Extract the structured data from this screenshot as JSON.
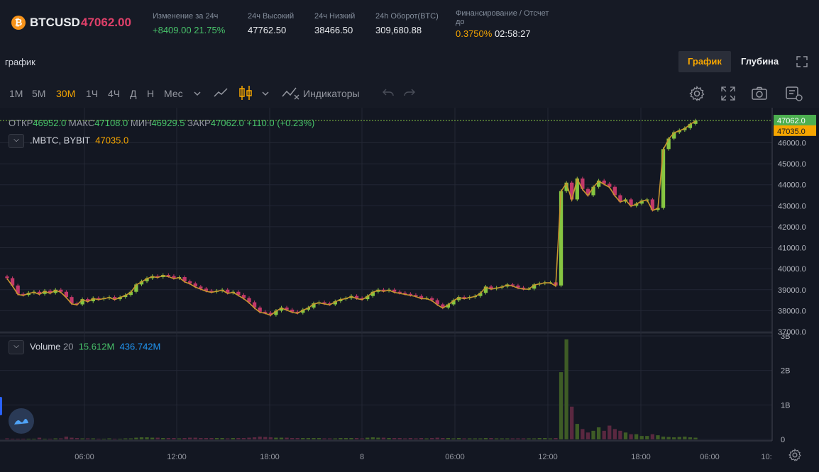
{
  "ticker": {
    "symbol": "BTCUSD",
    "price": "47062.00",
    "change": {
      "label": "Изменение за 24ч",
      "value": "+8409.00 21.75%"
    },
    "high": {
      "label": "24ч Высокий",
      "value": "47762.50"
    },
    "low": {
      "label": "24ч Низкий",
      "value": "38466.50"
    },
    "turnover": {
      "label": "24h Оборот(BTC)",
      "value": "309,680.88"
    },
    "funding": {
      "label_line1": "Финансирование / Отсчет",
      "label_line2": "до",
      "rate": "0.3750%",
      "countdown": "02:58:27"
    }
  },
  "chart_header": {
    "title": "график",
    "tabs": [
      "График",
      "Глубина"
    ],
    "active_tab": "График"
  },
  "toolbar": {
    "timeframes": [
      "1M",
      "5M",
      "30M",
      "1Ч",
      "4Ч",
      "Д",
      "Н",
      "Мес"
    ],
    "active_timeframe": "30M",
    "indicators_label": "Индикаторы"
  },
  "legend": {
    "open_label": "ОТКР",
    "open": "46952.0",
    "high_label": "МАКС",
    "high": "47108.0",
    "low_label": "МИН",
    "low": "46929.5",
    "close_label": "ЗАКР",
    "close": "47062.0",
    "change": "+110.0 (+0.23%)",
    "index_name": ".MBTC, BYBIT",
    "index_value": "47035.0",
    "volume_name": "Volume",
    "volume_period": "20",
    "volume_value1": "15.612M",
    "volume_value2": "436.742M"
  },
  "colors": {
    "up": "#86c541",
    "down": "#c2386a",
    "index_line": "#c8962f",
    "accent": "#f7a600",
    "background": "#131722"
  },
  "chart_data": {
    "type": "candlestick",
    "price_axis": {
      "ticks": [
        "37000.0",
        "38000.0",
        "39000.0",
        "40000.0",
        "41000.0",
        "42000.0",
        "43000.0",
        "44000.0",
        "45000.0",
        "46000.0"
      ],
      "ylim": [
        37000,
        47400
      ]
    },
    "volume_axis": {
      "ticks": [
        "0",
        "1B",
        "2B",
        "3B"
      ],
      "ylim": [
        0,
        3000000000
      ]
    },
    "time_axis": {
      "ticks": [
        "06:00",
        "12:00",
        "18:00",
        "8",
        "06:00",
        "12:00",
        "18:00",
        "06:00",
        "10:"
      ]
    },
    "price_labels": {
      "last": "47062.0",
      "index": "47035.0"
    },
    "series": [
      {
        "name": "BTCUSD",
        "close": [
          39550,
          39200,
          38800,
          38750,
          38850,
          38900,
          38800,
          38950,
          38850,
          39000,
          38900,
          38650,
          38350,
          38300,
          38550,
          38450,
          38600,
          38550,
          38600,
          38650,
          38550,
          38650,
          38750,
          38900,
          39250,
          39400,
          39550,
          39650,
          39600,
          39700,
          39650,
          39550,
          39600,
          39400,
          39300,
          39150,
          39050,
          38950,
          38900,
          38950,
          39000,
          38850,
          38900,
          38750,
          38600,
          38400,
          38150,
          37950,
          37900,
          37800,
          38000,
          38150,
          38050,
          37950,
          37900,
          38050,
          38150,
          38350,
          38400,
          38350,
          38300,
          38450,
          38550,
          38600,
          38700,
          38600,
          38550,
          38700,
          38900,
          39000,
          38950,
          39000,
          38900,
          38850,
          38800,
          38750,
          38700,
          38600,
          38600,
          38500,
          38300,
          38150,
          38300,
          38500,
          38650,
          38600,
          38650,
          38700,
          38850,
          39150,
          39050,
          39100,
          39150,
          39250,
          39200,
          39100,
          39050,
          39050,
          39250,
          39300,
          39350,
          39350,
          39200,
          43700,
          44100,
          43300,
          44300,
          43800,
          43500,
          43900,
          44200,
          44050,
          43900,
          43500,
          43200,
          43300,
          43000,
          43100,
          43250,
          43300,
          42800,
          42900,
          45700,
          46200,
          46500,
          46600,
          46700,
          46900,
          47062
        ]
      },
      {
        "name": ".MBTC, BYBIT",
        "values": "index line tracking close"
      },
      {
        "name": "Volume",
        "values": [
          0.03,
          0.02,
          0.02,
          0.02,
          0.02,
          0.02,
          0.05,
          0.02,
          0.02,
          0.03,
          0.03,
          0.08,
          0.05,
          0.04,
          0.03,
          0.03,
          0.03,
          0.02,
          0.02,
          0.03,
          0.02,
          0.02,
          0.03,
          0.03,
          0.05,
          0.06,
          0.06,
          0.05,
          0.05,
          0.04,
          0.04,
          0.04,
          0.03,
          0.04,
          0.05,
          0.05,
          0.04,
          0.04,
          0.04,
          0.04,
          0.04,
          0.03,
          0.04,
          0.04,
          0.04,
          0.05,
          0.06,
          0.08,
          0.07,
          0.06,
          0.05,
          0.05,
          0.05,
          0.04,
          0.04,
          0.04,
          0.04,
          0.04,
          0.04,
          0.03,
          0.03,
          0.03,
          0.04,
          0.04,
          0.04,
          0.04,
          0.03,
          0.05,
          0.06,
          0.05,
          0.05,
          0.04,
          0.04,
          0.04,
          0.03,
          0.04,
          0.03,
          0.04,
          0.03,
          0.04,
          0.05,
          0.04,
          0.04,
          0.03,
          0.04,
          0.03,
          0.03,
          0.03,
          0.03,
          0.04,
          0.04,
          0.03,
          0.03,
          0.03,
          0.03,
          0.03,
          0.03,
          0.03,
          0.03,
          0.04,
          0.04,
          0.03,
          0.04,
          1.95,
          2.9,
          0.95,
          0.45,
          0.3,
          0.2,
          0.25,
          0.35,
          0.25,
          0.4,
          0.3,
          0.25,
          0.2,
          0.15,
          0.15,
          0.1,
          0.1,
          0.15,
          0.12,
          0.08,
          0.07,
          0.06,
          0.07,
          0.08,
          0.06,
          0.05
        ]
      }
    ]
  }
}
